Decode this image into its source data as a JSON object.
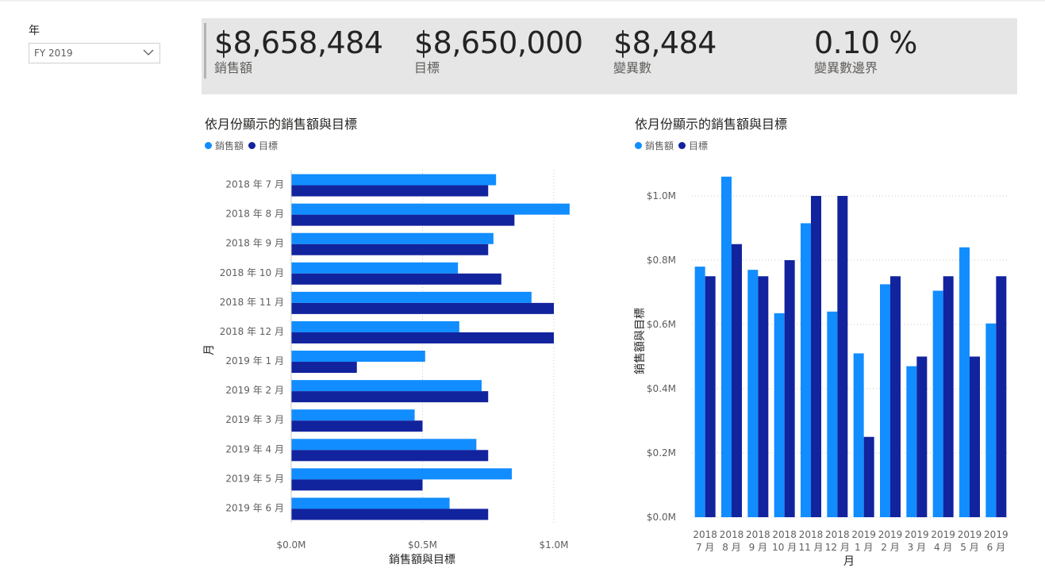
{
  "slicer": {
    "title": "年",
    "selected": "FY 2019"
  },
  "kpis": [
    {
      "value": "$8,658,484",
      "label": "銷售額"
    },
    {
      "value": "$8,650,000",
      "label": "目標"
    },
    {
      "value": "$8,484",
      "label": "變異數"
    },
    {
      "value": "0.10 %",
      "label": "變異數邊界"
    }
  ],
  "colors": {
    "sales": "#118DFF",
    "target": "#12239E"
  },
  "chart_data": [
    {
      "type": "bar",
      "orientation": "horizontal",
      "title": "依月份顯示的銷售額與目標",
      "xlabel": "銷售額與目標",
      "ylabel": "月",
      "xlim": [
        0,
        1100000
      ],
      "xticks": [
        {
          "value": 0,
          "label": "$0.0M"
        },
        {
          "value": 500000,
          "label": "$0.5M"
        },
        {
          "value": 1000000,
          "label": "$1.0M"
        }
      ],
      "legend_position": "top-left",
      "categories": [
        "2018 年 7 月",
        "2018 年 8 月",
        "2018 年 9 月",
        "2018 年 10 月",
        "2018 年 11 月",
        "2018 年 12 月",
        "2019 年 1 月",
        "2019 年 2 月",
        "2019 年 3 月",
        "2019 年 4 月",
        "2019 年 5 月",
        "2019 年 6 月"
      ],
      "series": [
        {
          "name": "銷售額",
          "values": [
            780000,
            1060000,
            770000,
            635000,
            915000,
            640000,
            510000,
            725000,
            470000,
            705000,
            840000,
            603000
          ]
        },
        {
          "name": "目標",
          "values": [
            750000,
            850000,
            750000,
            800000,
            1000000,
            1000000,
            250000,
            750000,
            500000,
            750000,
            500000,
            750000
          ]
        }
      ]
    },
    {
      "type": "bar",
      "orientation": "vertical",
      "title": "依月份顯示的銷售額與目標",
      "xlabel": "月",
      "ylabel": "銷售額與目標",
      "ylim": [
        0,
        1100000
      ],
      "yticks": [
        {
          "value": 0,
          "label": "$0.0M"
        },
        {
          "value": 200000,
          "label": "$0.2M"
        },
        {
          "value": 400000,
          "label": "$0.4M"
        },
        {
          "value": 600000,
          "label": "$0.6M"
        },
        {
          "value": 800000,
          "label": "$0.8M"
        },
        {
          "value": 1000000,
          "label": "$1.0M"
        }
      ],
      "legend_position": "top-left",
      "categories": [
        {
          "year": "2018",
          "month": "7 月"
        },
        {
          "year": "2018",
          "month": "8 月"
        },
        {
          "year": "2018",
          "month": "9 月"
        },
        {
          "year": "2018",
          "month": "10 月"
        },
        {
          "year": "2018",
          "month": "11 月"
        },
        {
          "year": "2018",
          "month": "12 月"
        },
        {
          "year": "2019",
          "month": "1 月"
        },
        {
          "year": "2019",
          "month": "2 月"
        },
        {
          "year": "2019",
          "month": "3 月"
        },
        {
          "year": "2019",
          "month": "4 月"
        },
        {
          "year": "2019",
          "month": "5 月"
        },
        {
          "year": "2019",
          "month": "6 月"
        }
      ],
      "series": [
        {
          "name": "銷售額",
          "values": [
            780000,
            1060000,
            770000,
            635000,
            915000,
            640000,
            510000,
            725000,
            470000,
            705000,
            840000,
            603000
          ]
        },
        {
          "name": "目標",
          "values": [
            750000,
            850000,
            750000,
            800000,
            1000000,
            1000000,
            250000,
            750000,
            500000,
            750000,
            500000,
            750000
          ]
        }
      ]
    }
  ]
}
